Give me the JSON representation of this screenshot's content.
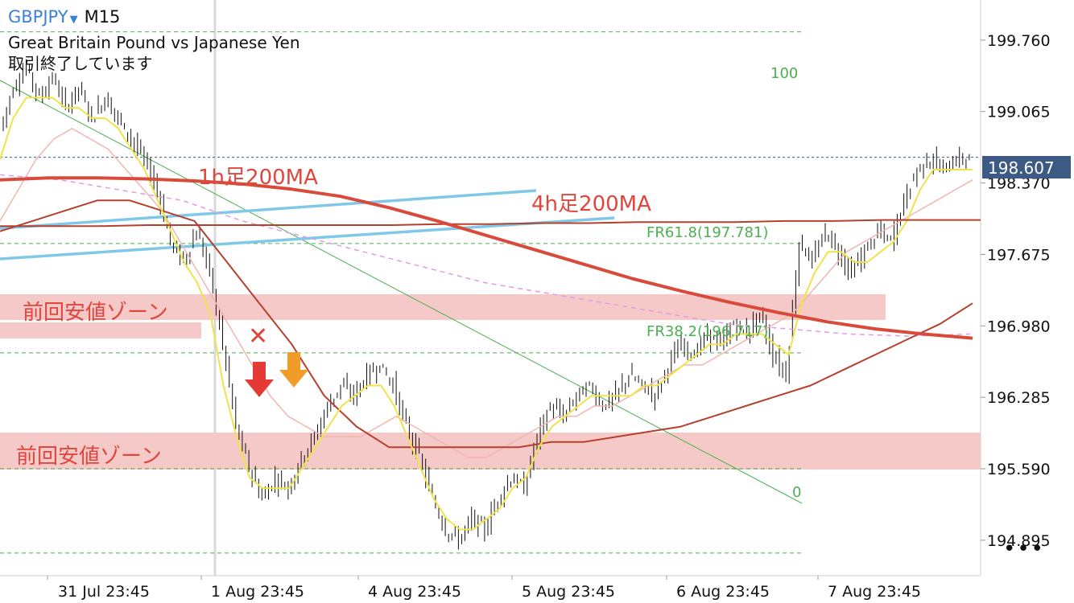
{
  "header": {
    "symbol": "GBPJPY",
    "timeframe": "M15",
    "description": "Great Britain Pound vs Japanese Yen",
    "status": "取引終了しています"
  },
  "chart_data": {
    "type": "candlestick",
    "ylim": [
      194.55,
      200.15
    ],
    "y_ticks": [
      "199.760",
      "199.065",
      "198.370",
      "197.675",
      "196.980",
      "196.285",
      "195.590",
      "194.895"
    ],
    "x_ticks": [
      "31 Jul 23:45",
      "1 Aug 23:45",
      "4 Aug 23:45",
      "5 Aug 23:45",
      "6 Aug 23:45",
      "7 Aug 23:45"
    ],
    "current_price": "198.607",
    "annotations": {
      "ma_1h": "1h足200MA",
      "ma_4h": "4h足200MA",
      "zone_upper": "前回安値ゾーン",
      "zone_lower": "前回安値ゾーン",
      "fib_100": "100",
      "fib_618": "FR61.8(197.781)",
      "fib_382": "FR38.2(196.717)",
      "fib_0": "0",
      "cross_mark": "✕"
    },
    "fib_levels": [
      199.84,
      198.62,
      197.781,
      196.717,
      195.59,
      194.77
    ],
    "series": [
      {
        "role": "close",
        "values": [
          198.9,
          199.3,
          199.5,
          199.2,
          199.4,
          199.1,
          199.3,
          199.0,
          199.2,
          199.0,
          198.8,
          198.6,
          198.3,
          197.8,
          197.6,
          197.9,
          197.5,
          196.8,
          196.0,
          195.6,
          195.3,
          195.5,
          195.4,
          195.7,
          195.9,
          196.2,
          196.4,
          196.3,
          196.5,
          196.6,
          196.4,
          196.0,
          195.7,
          195.3,
          195.0,
          194.9,
          195.1,
          195.0,
          195.3,
          195.5,
          195.4,
          195.9,
          196.2,
          196.1,
          196.3,
          196.4,
          196.2,
          196.3,
          196.5,
          196.4,
          196.3,
          196.6,
          196.8,
          196.7,
          196.9,
          196.8,
          197.0,
          196.9,
          197.1,
          196.7,
          196.5,
          197.8,
          197.6,
          197.9,
          197.7,
          197.5,
          197.7,
          197.9,
          197.8,
          198.2,
          198.5,
          198.6,
          198.5,
          198.6,
          198.6
        ]
      },
      {
        "role": "ma_fast",
        "values": [
          198.6,
          199.0,
          199.2,
          199.2,
          199.2,
          199.1,
          199.1,
          199.0,
          199.0,
          198.9,
          198.7,
          198.5,
          198.2,
          197.9,
          197.6,
          197.4,
          197.1,
          196.4,
          195.9,
          195.5,
          195.4,
          195.4,
          195.4,
          195.6,
          195.8,
          196.0,
          196.2,
          196.3,
          196.4,
          196.4,
          196.2,
          195.9,
          195.6,
          195.3,
          195.1,
          195.0,
          195.0,
          195.1,
          195.2,
          195.4,
          195.5,
          195.8,
          196.0,
          196.1,
          196.2,
          196.3,
          196.3,
          196.3,
          196.3,
          196.4,
          196.4,
          196.5,
          196.6,
          196.7,
          196.8,
          196.8,
          196.9,
          196.9,
          196.9,
          196.8,
          196.7,
          197.2,
          197.5,
          197.7,
          197.7,
          197.6,
          197.6,
          197.7,
          197.8,
          198.0,
          198.3,
          198.5,
          198.5,
          198.5,
          198.5
        ]
      },
      {
        "role": "ma_slow",
        "values": [
          198.0,
          198.3,
          198.6,
          198.8,
          198.9,
          198.8,
          198.7,
          198.5,
          198.3,
          198.1,
          197.8,
          197.5,
          197.2,
          196.9,
          196.6,
          196.3,
          196.1,
          196.0,
          195.9,
          195.9,
          195.9,
          196.0,
          196.1,
          196.0,
          195.9,
          195.8,
          195.7,
          195.7,
          195.8,
          195.9,
          196.0,
          196.1,
          196.1,
          196.2,
          196.2,
          196.3,
          196.4,
          196.5,
          196.6,
          196.6,
          196.7,
          196.8,
          196.9,
          197.0,
          197.1,
          197.3,
          197.5,
          197.7,
          197.8,
          197.9,
          198.0,
          198.1,
          198.2,
          198.3,
          198.4
        ]
      },
      {
        "role": "ma_1h_200",
        "values": [
          198.4,
          198.42,
          198.42,
          198.41,
          198.39,
          198.36,
          198.31,
          198.24,
          198.13,
          198.0,
          197.86,
          197.72,
          197.58,
          197.44,
          197.32,
          197.21,
          197.11,
          197.02,
          196.95,
          196.9,
          196.86
        ]
      },
      {
        "role": "ma_4h_200",
        "values": [
          197.95,
          197.95,
          197.95,
          197.96,
          197.96,
          197.96,
          197.96,
          197.96,
          197.96,
          197.97,
          197.97,
          197.98,
          197.98,
          197.99,
          197.99,
          197.99,
          198.0,
          198.0,
          198.01,
          198.01,
          198.01
        ]
      },
      {
        "role": "ma_mid",
        "values": [
          197.9,
          198.0,
          198.1,
          198.2,
          198.2,
          198.1,
          198.0,
          197.6,
          197.2,
          196.8,
          196.3,
          196.0,
          195.8,
          195.8,
          195.8,
          195.8,
          195.8,
          195.85,
          195.85,
          195.9,
          195.95,
          196.0,
          196.1,
          196.2,
          196.3,
          196.4,
          196.55,
          196.7,
          196.85,
          197.0,
          197.2
        ]
      },
      {
        "role": "ma_long_dashed",
        "values": [
          198.45,
          198.4,
          198.3,
          198.2,
          198.0,
          197.85,
          197.7,
          197.55,
          197.4,
          197.3,
          197.2,
          197.1,
          197.0,
          196.95,
          196.9,
          196.88,
          196.9
        ]
      }
    ]
  }
}
